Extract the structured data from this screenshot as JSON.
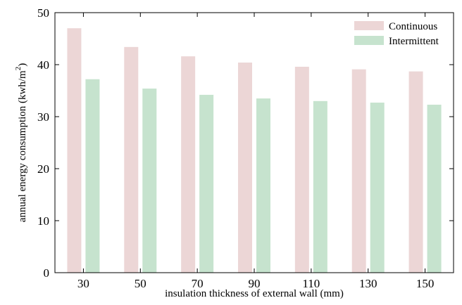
{
  "chart_data": {
    "type": "bar",
    "categories": [
      "30",
      "50",
      "70",
      "90",
      "110",
      "130",
      "150"
    ],
    "series": [
      {
        "name": "Continuous",
        "values": [
          47.0,
          43.4,
          41.6,
          40.4,
          39.6,
          39.1,
          38.7
        ],
        "color": "#ecd6d6"
      },
      {
        "name": "Intermittent",
        "values": [
          37.2,
          35.4,
          34.2,
          33.5,
          33.0,
          32.7,
          32.3
        ],
        "color": "#c6e3ce"
      }
    ],
    "xlabel": "insulation thickness of external wall (mm)",
    "ylabel_main": "annual energy consumption (kwh/m",
    "ylabel_sup": "2",
    "ylabel_close": ")",
    "ylim": [
      0,
      50
    ],
    "yticks": [
      "0",
      "10",
      "20",
      "30",
      "40",
      "50"
    ],
    "grid": false,
    "legend_position": "top-right"
  }
}
